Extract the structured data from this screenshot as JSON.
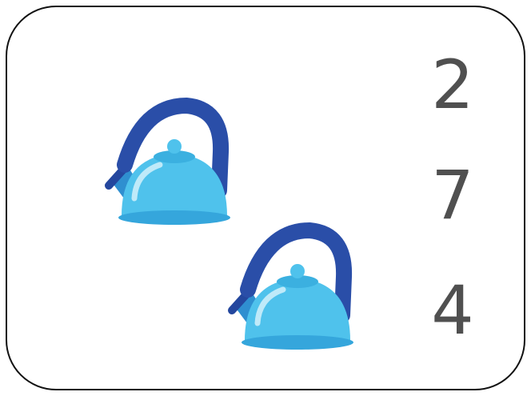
{
  "options": [
    "2",
    "7",
    "4"
  ]
}
